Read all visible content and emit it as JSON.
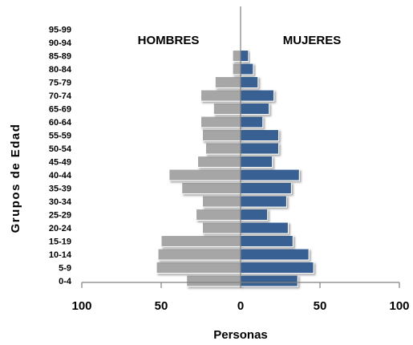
{
  "chart_data": {
    "type": "bar",
    "orientation": "horizontal-population-pyramid",
    "categories": [
      "0-4",
      "5-9",
      "10-14",
      "15-19",
      "20-24",
      "25-29",
      "30-34",
      "35-39",
      "40-44",
      "45-49",
      "50-54",
      "55-59",
      "60-64",
      "65-69",
      "70-74",
      "75-79",
      "80-84",
      "85-89",
      "90-94",
      "95-99"
    ],
    "series": [
      {
        "name": "HOMBRES",
        "side": "left",
        "color": "#a6a6a6",
        "values": [
          34,
          53,
          52,
          50,
          24,
          28,
          24,
          37,
          45,
          27,
          22,
          24,
          25,
          17,
          25,
          16,
          5,
          5,
          0,
          0
        ]
      },
      {
        "name": "MUJERES",
        "side": "right",
        "color": "#376092",
        "values": [
          36,
          46,
          43,
          33,
          30,
          17,
          29,
          32,
          37,
          20,
          24,
          24,
          14,
          18,
          21,
          11,
          8,
          5,
          0,
          0
        ]
      }
    ],
    "xlabel": "Personas",
    "ylabel": "Grupos de Edad",
    "xticks": [
      "100",
      "50",
      "0",
      "50",
      "100"
    ],
    "xlim": [
      -100,
      100
    ],
    "grid": false
  }
}
